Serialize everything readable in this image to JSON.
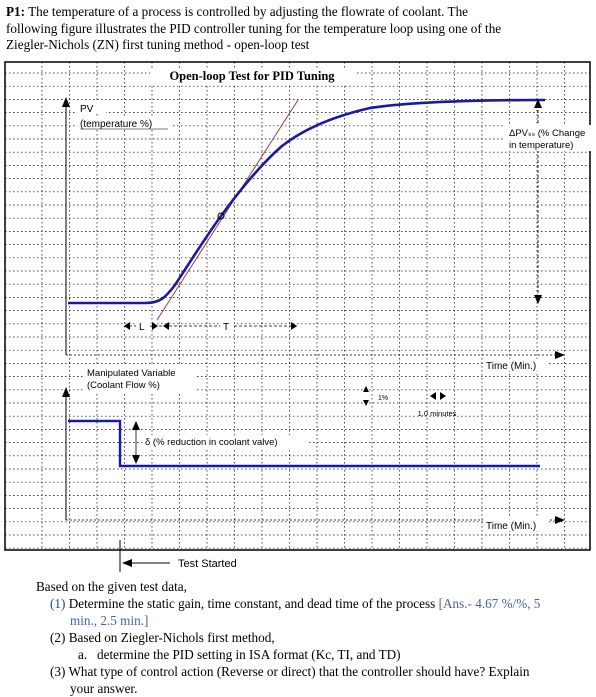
{
  "intro": {
    "problem_number": "P1:",
    "text_line1": "The temperature of a process is controlled by adjusting the flowrate of coolant. The",
    "text_line2": "following figure illustrates the PID controller tuning for the temperature loop using one of the",
    "text_line3": "Ziegler-Nichols (ZN) first tuning method - open-loop test"
  },
  "figure": {
    "title": "Open-loop Test for PID Tuning",
    "pv_label": "PV",
    "pv_sublabel": "(temperature %)",
    "delta_pv_label": "ΔPVₛₛ (% Change",
    "delta_pv_label2": "in temperature)",
    "L_label": "L",
    "T_label": "T",
    "time_label_top": "Time (Min.)",
    "mv_label": "Manipulated Variable",
    "mv_sublabel": "(Coolant Flow %)",
    "scale_pct": "1%",
    "scale_time": "1.0 minutes",
    "delta_label": "δ (% reduction in coolant valve)",
    "time_label_bottom": "Time (Min.)",
    "test_started": "Test Started",
    "pv_color": "#1a1aa0",
    "mv_color": "#1a1aa0",
    "tangent_color": "#a04040"
  },
  "questions": {
    "lead": "Based on the given test data,",
    "q1_num": "(1)",
    "q1_text": "Determine the static gain, time constant, and dead time of the process",
    "q1_ans": "[Ans.- 4.67 %/%, 5",
    "q1_ans2": "min., 2.5 min.]",
    "q2_num": "(2)",
    "q2_text": "Based on Ziegler-Nichols first method,",
    "q2a_num": "a.",
    "q2a_text": "determine the PID setting in ISA format (Kc, TI, and TD)",
    "q3_num": "(3)",
    "q3_text": "What type of control action (Reverse or direct) that the controller should have? Explain",
    "q3_text2": "your answer."
  }
}
